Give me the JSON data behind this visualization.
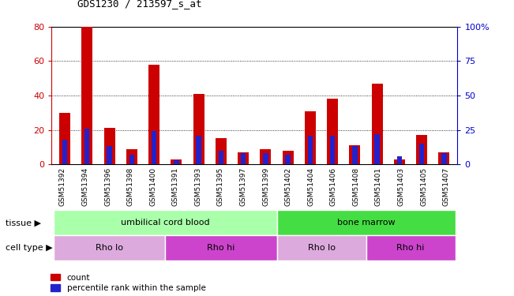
{
  "title": "GDS1230 / 213597_s_at",
  "samples": [
    "GSM51392",
    "GSM51394",
    "GSM51396",
    "GSM51398",
    "GSM51400",
    "GSM51391",
    "GSM51393",
    "GSM51395",
    "GSM51397",
    "GSM51399",
    "GSM51402",
    "GSM51404",
    "GSM51406",
    "GSM51408",
    "GSM51401",
    "GSM51403",
    "GSM51405",
    "GSM51407"
  ],
  "count_values": [
    30,
    80,
    21,
    9,
    58,
    3,
    41,
    15,
    7,
    9,
    8,
    31,
    38,
    11,
    47,
    3,
    17,
    7
  ],
  "percentile_values": [
    18,
    26,
    13,
    7,
    24,
    3,
    21,
    10,
    8,
    8,
    7,
    21,
    21,
    13,
    22,
    6,
    15,
    8
  ],
  "ylim_left": [
    0,
    80
  ],
  "ylim_right": [
    0,
    100
  ],
  "yticks_left": [
    0,
    20,
    40,
    60,
    80
  ],
  "yticks_right": [
    0,
    25,
    50,
    75,
    100
  ],
  "ytick_labels_right": [
    "0",
    "25",
    "50",
    "75",
    "100%"
  ],
  "bar_color_count": "#cc0000",
  "bar_color_percentile": "#2222cc",
  "bar_width": 0.5,
  "tissue_groups": [
    {
      "label": "umbilical cord blood",
      "start": 0,
      "end": 9,
      "color": "#aaffaa"
    },
    {
      "label": "bone marrow",
      "start": 10,
      "end": 17,
      "color": "#44dd44"
    }
  ],
  "cell_type_groups": [
    {
      "label": "Rho lo",
      "start": 0,
      "end": 4,
      "color": "#ddaadd"
    },
    {
      "label": "Rho hi",
      "start": 5,
      "end": 9,
      "color": "#cc44cc"
    },
    {
      "label": "Rho lo",
      "start": 10,
      "end": 13,
      "color": "#ddaadd"
    },
    {
      "label": "Rho hi",
      "start": 14,
      "end": 17,
      "color": "#cc44cc"
    }
  ],
  "legend_count_label": "count",
  "legend_percentile_label": "percentile rank within the sample",
  "tissue_label": "tissue",
  "cell_type_label": "cell type",
  "left_axis_color": "#cc0000",
  "right_axis_color": "#0000cc"
}
